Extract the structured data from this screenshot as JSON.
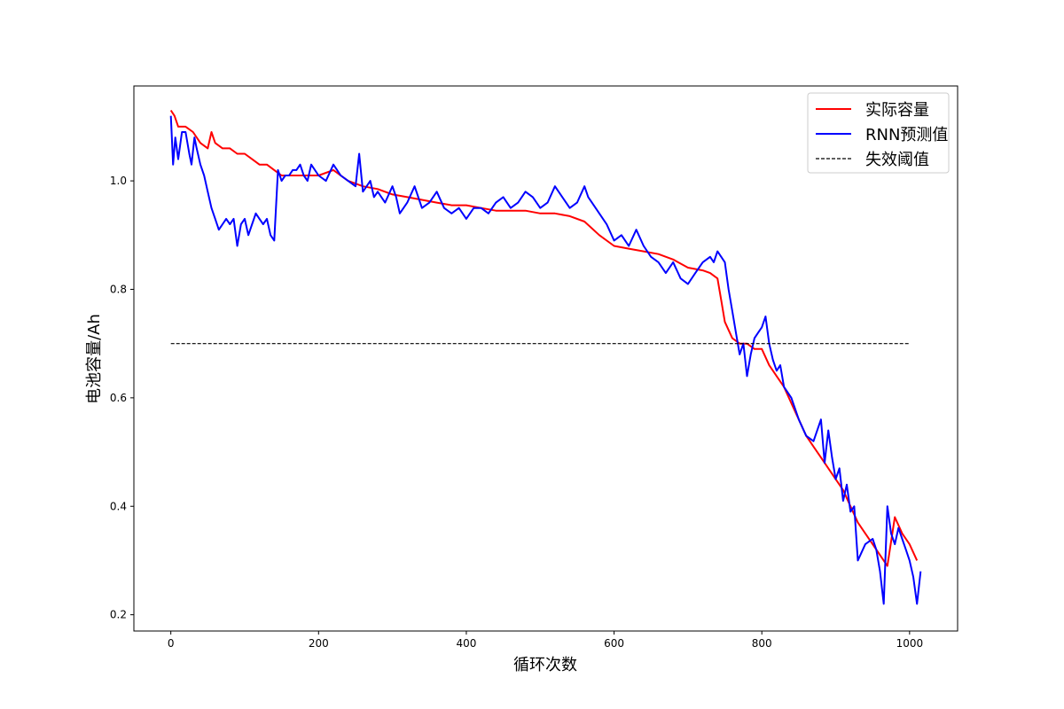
{
  "chart_data": {
    "type": "line",
    "title": "",
    "xlabel": "循环次数",
    "ylabel": "电池容量/Ah",
    "xlim": [
      -50,
      1065
    ],
    "ylim": [
      0.17,
      1.175
    ],
    "xticks": [
      "0",
      "200",
      "400",
      "600",
      "800",
      "1000"
    ],
    "yticks": [
      "0.2",
      "0.4",
      "0.6",
      "0.8",
      "1.0"
    ],
    "grid": false,
    "legend_position": "upper right",
    "series": [
      {
        "name": "实际容量",
        "color": "#ff0000",
        "style": "solid",
        "x": [
          0,
          5,
          10,
          20,
          30,
          40,
          50,
          55,
          60,
          70,
          80,
          90,
          100,
          110,
          120,
          130,
          140,
          150,
          160,
          180,
          200,
          220,
          240,
          260,
          280,
          300,
          320,
          340,
          360,
          380,
          400,
          420,
          440,
          460,
          480,
          500,
          520,
          540,
          560,
          580,
          600,
          620,
          640,
          660,
          680,
          700,
          720,
          730,
          740,
          745,
          750,
          760,
          770,
          780,
          790,
          800,
          810,
          820,
          830,
          840,
          850,
          860,
          870,
          880,
          890,
          900,
          910,
          920,
          930,
          940,
          950,
          960,
          970,
          980,
          990,
          1000,
          1010
        ],
        "values": [
          1.13,
          1.12,
          1.1,
          1.1,
          1.09,
          1.07,
          1.06,
          1.09,
          1.07,
          1.06,
          1.06,
          1.05,
          1.05,
          1.04,
          1.03,
          1.03,
          1.02,
          1.01,
          1.01,
          1.01,
          1.01,
          1.02,
          1.0,
          0.99,
          0.985,
          0.975,
          0.97,
          0.965,
          0.96,
          0.955,
          0.955,
          0.95,
          0.945,
          0.945,
          0.945,
          0.94,
          0.94,
          0.935,
          0.925,
          0.9,
          0.88,
          0.875,
          0.87,
          0.865,
          0.855,
          0.84,
          0.835,
          0.83,
          0.82,
          0.78,
          0.74,
          0.71,
          0.7,
          0.7,
          0.69,
          0.69,
          0.66,
          0.64,
          0.62,
          0.59,
          0.56,
          0.53,
          0.51,
          0.49,
          0.47,
          0.45,
          0.43,
          0.4,
          0.37,
          0.35,
          0.33,
          0.31,
          0.29,
          0.38,
          0.35,
          0.33,
          0.3
        ]
      },
      {
        "name": "RNN预测值",
        "color": "#0000ff",
        "style": "solid",
        "x": [
          0,
          3,
          6,
          10,
          15,
          20,
          25,
          28,
          32,
          35,
          40,
          45,
          50,
          55,
          60,
          65,
          70,
          75,
          80,
          85,
          90,
          95,
          100,
          105,
          110,
          115,
          120,
          125,
          130,
          135,
          140,
          145,
          150,
          155,
          160,
          165,
          170,
          175,
          180,
          185,
          190,
          200,
          210,
          220,
          230,
          240,
          250,
          255,
          260,
          265,
          270,
          275,
          280,
          290,
          300,
          305,
          310,
          320,
          330,
          340,
          350,
          360,
          370,
          380,
          390,
          400,
          410,
          420,
          430,
          440,
          450,
          460,
          470,
          480,
          490,
          500,
          510,
          520,
          530,
          540,
          550,
          560,
          565,
          570,
          580,
          590,
          600,
          610,
          620,
          630,
          640,
          650,
          660,
          670,
          680,
          690,
          700,
          710,
          720,
          730,
          735,
          740,
          745,
          750,
          755,
          760,
          765,
          770,
          775,
          780,
          785,
          790,
          795,
          800,
          805,
          810,
          815,
          820,
          825,
          830,
          840,
          850,
          860,
          870,
          880,
          885,
          890,
          895,
          900,
          905,
          910,
          915,
          920,
          925,
          930,
          940,
          950,
          955,
          960,
          965,
          970,
          975,
          980,
          985,
          990,
          995,
          1000,
          1005,
          1010,
          1015
        ],
        "values": [
          1.12,
          1.03,
          1.08,
          1.04,
          1.09,
          1.09,
          1.05,
          1.03,
          1.08,
          1.06,
          1.03,
          1.01,
          0.98,
          0.95,
          0.93,
          0.91,
          0.92,
          0.93,
          0.92,
          0.93,
          0.88,
          0.92,
          0.93,
          0.9,
          0.92,
          0.94,
          0.93,
          0.92,
          0.93,
          0.9,
          0.89,
          1.02,
          1.0,
          1.01,
          1.01,
          1.02,
          1.02,
          1.03,
          1.01,
          1.0,
          1.03,
          1.01,
          1.0,
          1.03,
          1.01,
          1.0,
          0.99,
          1.05,
          0.98,
          0.99,
          1.0,
          0.97,
          0.98,
          0.96,
          0.99,
          0.97,
          0.94,
          0.96,
          0.99,
          0.95,
          0.96,
          0.98,
          0.95,
          0.94,
          0.95,
          0.93,
          0.95,
          0.95,
          0.94,
          0.96,
          0.97,
          0.95,
          0.96,
          0.98,
          0.97,
          0.95,
          0.96,
          0.99,
          0.97,
          0.95,
          0.96,
          0.99,
          0.97,
          0.96,
          0.94,
          0.92,
          0.89,
          0.9,
          0.88,
          0.91,
          0.88,
          0.86,
          0.85,
          0.83,
          0.85,
          0.82,
          0.81,
          0.83,
          0.85,
          0.86,
          0.85,
          0.87,
          0.86,
          0.85,
          0.8,
          0.76,
          0.72,
          0.68,
          0.7,
          0.64,
          0.68,
          0.71,
          0.72,
          0.73,
          0.75,
          0.7,
          0.67,
          0.65,
          0.66,
          0.62,
          0.6,
          0.56,
          0.53,
          0.52,
          0.56,
          0.48,
          0.54,
          0.49,
          0.45,
          0.47,
          0.41,
          0.44,
          0.39,
          0.4,
          0.3,
          0.33,
          0.34,
          0.32,
          0.28,
          0.22,
          0.4,
          0.35,
          0.33,
          0.36,
          0.34,
          0.32,
          0.3,
          0.27,
          0.22,
          0.28
        ]
      },
      {
        "name": "失效阈值",
        "color": "#000000",
        "style": "dashed",
        "x": [
          0,
          1000
        ],
        "values": [
          0.7,
          0.7
        ]
      }
    ]
  }
}
